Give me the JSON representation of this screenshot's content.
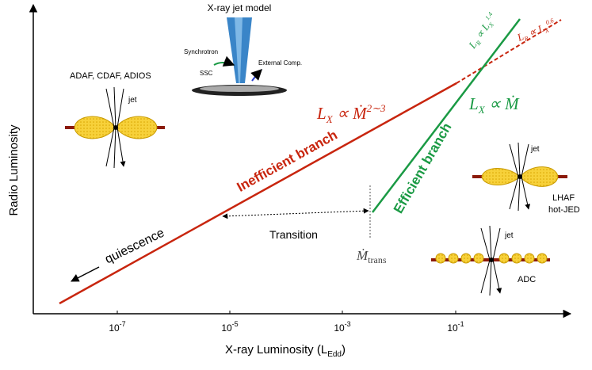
{
  "axes": {
    "x_label": {
      "text": "X-ray Luminosity (L",
      "sub": "Edd",
      "close": ")"
    },
    "y_label": "Radio Luminosity",
    "x_ticks": [
      {
        "base": "10",
        "exp": "-7"
      },
      {
        "base": "10",
        "exp": "-5"
      },
      {
        "base": "10",
        "exp": "-3"
      },
      {
        "base": "10",
        "exp": "-1"
      }
    ]
  },
  "branches": {
    "inefficient": "Inefficient branch",
    "efficient": "Efficient branch"
  },
  "relations": {
    "inefficient": {
      "base": "L",
      "sub": "X",
      "mid": " ∝ Ṁ",
      "sup": "2∼3"
    },
    "efficient": {
      "base": "L",
      "sub": "X",
      "mid": " ∝ Ṁ"
    },
    "steep": {
      "base": "L",
      "sub": "R",
      "mid": " ∝ L",
      "sub2": "X",
      "sup": "1.4"
    },
    "flat": {
      "base": "L",
      "sub": "R",
      "mid": " ∝ L",
      "sub2": "X",
      "sup": "0.6"
    }
  },
  "labels": {
    "transition": "Transition",
    "mdot_trans": {
      "base": "Ṁ",
      "sub": "trans"
    },
    "quiescence": "quiescence"
  },
  "jet_model": {
    "title": "X-ray jet model",
    "synchrotron": "Synchrotron",
    "ssc": "SSC",
    "external": "External Comp."
  },
  "icons": {
    "adaf": {
      "title": "ADAF, CDAF, ADIOS",
      "jet": "jet"
    },
    "lhaf": {
      "jet": "jet",
      "line1": "LHAF",
      "line2": "hot-JED"
    },
    "adc": {
      "jet": "jet",
      "label": "ADC"
    }
  }
}
